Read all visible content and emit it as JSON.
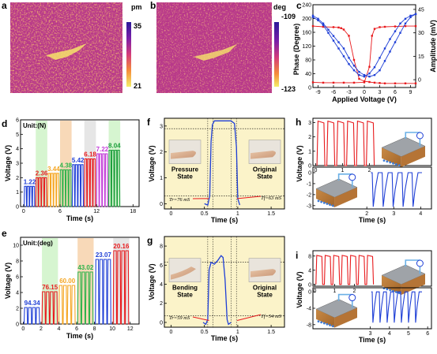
{
  "colors": {
    "red": "#e8191c",
    "blue": "#1f3fd6",
    "panel_bg": "#fbf3c9",
    "band_green": "#d6f5d0",
    "band_peach": "#f8d9b8",
    "band_gray": "#e6e6e6"
  },
  "panel_a": {
    "letter": "a",
    "colorbar_unit": "pm",
    "colorbar_max": "35",
    "colorbar_min": "21"
  },
  "panel_b": {
    "letter": "b",
    "colorbar_unit": "deg",
    "colorbar_max": "-109",
    "colorbar_min": "-123"
  },
  "chart_data": [
    {
      "panel": "c",
      "type": "line",
      "xlabel": "Applied Voltage (V)",
      "ylabel_left": "Phase (Degree)",
      "ylabel_right": "Amplitude (mV)",
      "x_ticks": [
        "-9",
        "-6",
        "-3",
        "0",
        "3",
        "6",
        "9"
      ],
      "y_left_ticks": [
        "0",
        "40",
        "80",
        "120",
        "160",
        "200",
        "240"
      ],
      "y_right_ticks": [
        "0",
        "15",
        "30",
        "45"
      ],
      "xlim": [
        -10,
        10
      ],
      "ylim_left": [
        0,
        240
      ],
      "ylim_right": [
        -5,
        48
      ],
      "series": [
        {
          "axis": "left",
          "color": "red",
          "x": [
            -10,
            -8,
            -6,
            -5,
            -4.5,
            -4,
            -3,
            -2,
            -1,
            0,
            1,
            2,
            3,
            4,
            6,
            8,
            10
          ],
          "y": [
            178,
            176,
            175,
            174,
            172,
            168,
            150,
            80,
            25,
            18,
            16,
            14,
            13,
            12,
            12,
            12,
            12
          ]
        },
        {
          "axis": "left",
          "color": "red",
          "x": [
            -10,
            -8,
            -6,
            -4,
            -2,
            0,
            1,
            1.5,
            2,
            3,
            4,
            6,
            8,
            10
          ],
          "y": [
            15,
            14,
            14,
            14,
            14,
            15,
            60,
            150,
            170,
            175,
            176,
            177,
            178,
            178
          ]
        },
        {
          "axis": "right",
          "color": "blue",
          "x": [
            -10,
            -9,
            -8,
            -7,
            -6,
            -5,
            -4,
            -3,
            -2,
            -1,
            0,
            1,
            2,
            3,
            4,
            5,
            6,
            7,
            8,
            9,
            10
          ],
          "y": [
            40,
            38,
            35,
            30,
            25,
            20,
            15,
            10,
            6,
            3,
            2,
            4,
            8,
            14,
            20,
            26,
            31,
            36,
            39,
            41,
            42
          ]
        },
        {
          "axis": "right",
          "color": "blue",
          "x": [
            -10,
            -9,
            -8,
            -7,
            -6,
            -5,
            -4,
            -3,
            -2,
            -1,
            0,
            1,
            2,
            3,
            4,
            5,
            6,
            7,
            8,
            9,
            10
          ],
          "y": [
            41,
            39,
            36,
            32,
            28,
            24,
            20,
            14,
            9,
            5,
            3,
            2,
            3,
            6,
            12,
            18,
            24,
            30,
            36,
            40,
            42
          ]
        }
      ]
    },
    {
      "panel": "d",
      "type": "line",
      "unit_label": "Unit:(N)",
      "xlabel": "Time (s)",
      "ylabel": "Voltage (V)",
      "x_ticks": [
        "0",
        "6",
        "12",
        "18"
      ],
      "y_ticks": [
        "0",
        "1",
        "2",
        "3",
        "4",
        "5",
        "6"
      ],
      "xlim": [
        -0.5,
        19
      ],
      "ylim": [
        0,
        6
      ],
      "groups": [
        {
          "label": "1.22",
          "amp": 1.4,
          "start": 0.1,
          "end": 1.9
        },
        {
          "label": "2.36",
          "amp": 2.0,
          "start": 2.0,
          "end": 3.9
        },
        {
          "label": "3.44",
          "amp": 2.3,
          "start": 4.0,
          "end": 5.9
        },
        {
          "label": "4.38",
          "amp": 2.55,
          "start": 6.0,
          "end": 7.9
        },
        {
          "label": "5.42",
          "amp": 2.9,
          "start": 8.0,
          "end": 9.9
        },
        {
          "label": "6.18",
          "amp": 3.3,
          "start": 10.0,
          "end": 11.9
        },
        {
          "label": "7.22",
          "amp": 3.65,
          "start": 12.0,
          "end": 13.9
        },
        {
          "label": "8.04",
          "amp": 3.9,
          "start": 14.0,
          "end": 15.9
        }
      ]
    },
    {
      "panel": "e",
      "type": "line",
      "unit_label": "Unit:(deg)",
      "xlabel": "Time (s)",
      "ylabel": "Voltage (V)",
      "x_ticks": [
        "0",
        "2",
        "4",
        "6",
        "8",
        "10",
        "12"
      ],
      "y_ticks": [
        "0",
        "2",
        "4",
        "6",
        "8",
        "10"
      ],
      "xlim": [
        -0.3,
        13
      ],
      "ylim": [
        0,
        11
      ],
      "groups": [
        {
          "label": "94.34",
          "amp": 2.1,
          "start": 0.1,
          "end": 1.9
        },
        {
          "label": "76.15",
          "amp": 4.1,
          "start": 2.1,
          "end": 3.9
        },
        {
          "label": "60.00",
          "amp": 4.9,
          "start": 4.0,
          "end": 5.9
        },
        {
          "label": "43.02",
          "amp": 6.6,
          "start": 6.1,
          "end": 7.9
        },
        {
          "label": "23.07",
          "amp": 8.2,
          "start": 8.1,
          "end": 9.9
        },
        {
          "label": "20.16",
          "amp": 9.3,
          "start": 10.1,
          "end": 11.9
        }
      ]
    },
    {
      "panel": "f",
      "type": "line",
      "xlabel": "Time (s)",
      "ylabel": "Voltage (V)",
      "x_ticks": [
        "0",
        "0.5",
        "1",
        "1.5"
      ],
      "y_ticks": [
        "0",
        "1",
        "2",
        "3"
      ],
      "xlim": [
        -0.1,
        1.7
      ],
      "ylim": [
        -0.2,
        3.3
      ],
      "labels": [
        "Pressure State",
        "Original State"
      ],
      "tr_note": "Tr=76 mS",
      "tf_note": "Tf=63 mS",
      "x": [
        0.5,
        0.55,
        0.58,
        0.6,
        0.62,
        0.65,
        0.7,
        0.9,
        0.95,
        0.98,
        1.0,
        1.03
      ],
      "y": [
        0.0,
        -0.05,
        0.3,
        2.4,
        3.05,
        3.2,
        3.2,
        3.2,
        3.1,
        2.2,
        0.2,
        -0.05
      ]
    },
    {
      "panel": "g",
      "type": "line",
      "xlabel": "Time (s)",
      "ylabel": "Voltage (V)",
      "x_ticks": [
        "0",
        "0.5",
        "1",
        "1.5"
      ],
      "y_ticks": [
        "0",
        "2",
        "4",
        "6",
        "8"
      ],
      "xlim": [
        -0.1,
        1.7
      ],
      "ylim": [
        -0.5,
        9
      ],
      "labels": [
        "Bending State",
        "Original State"
      ],
      "tr_note": "Tr=59 mS",
      "tf_note": "Tf=54 mS",
      "x": [
        0.48,
        0.52,
        0.55,
        0.57,
        0.6,
        0.65,
        0.7,
        0.75,
        0.78,
        0.81,
        0.84,
        0.86,
        0.9
      ],
      "y": [
        0.0,
        -0.2,
        0.3,
        5.5,
        6.3,
        6.1,
        6.5,
        7.0,
        6.8,
        4.5,
        0.3,
        -0.2,
        0.0
      ]
    },
    {
      "panel": "h",
      "type": "line",
      "xlabel": "Time (s)",
      "ylabel": "Voltage (V)",
      "top_x_ticks": [
        "0",
        "1",
        "2"
      ],
      "top_y_ticks": [
        "0",
        "1",
        "2",
        "3"
      ],
      "bottom_x_ticks": [
        "2",
        "3",
        "4"
      ],
      "bottom_y_ticks": [
        "-3",
        "-2",
        "-1",
        "0"
      ],
      "top_pulses": 6,
      "bottom_pulses": 5
    },
    {
      "panel": "i",
      "type": "line",
      "xlabel": "Time (s)",
      "ylabel": "Voltage (V)",
      "top_x_ticks": [
        "0",
        "1",
        "2"
      ],
      "top_y_ticks": [
        "0",
        "4",
        "8"
      ],
      "bottom_x_ticks": [
        "3",
        "4",
        "5",
        "6"
      ],
      "bottom_y_ticks": [
        "-8",
        "-4",
        "0"
      ],
      "top_pulses": 7,
      "bottom_pulses": 7
    }
  ]
}
